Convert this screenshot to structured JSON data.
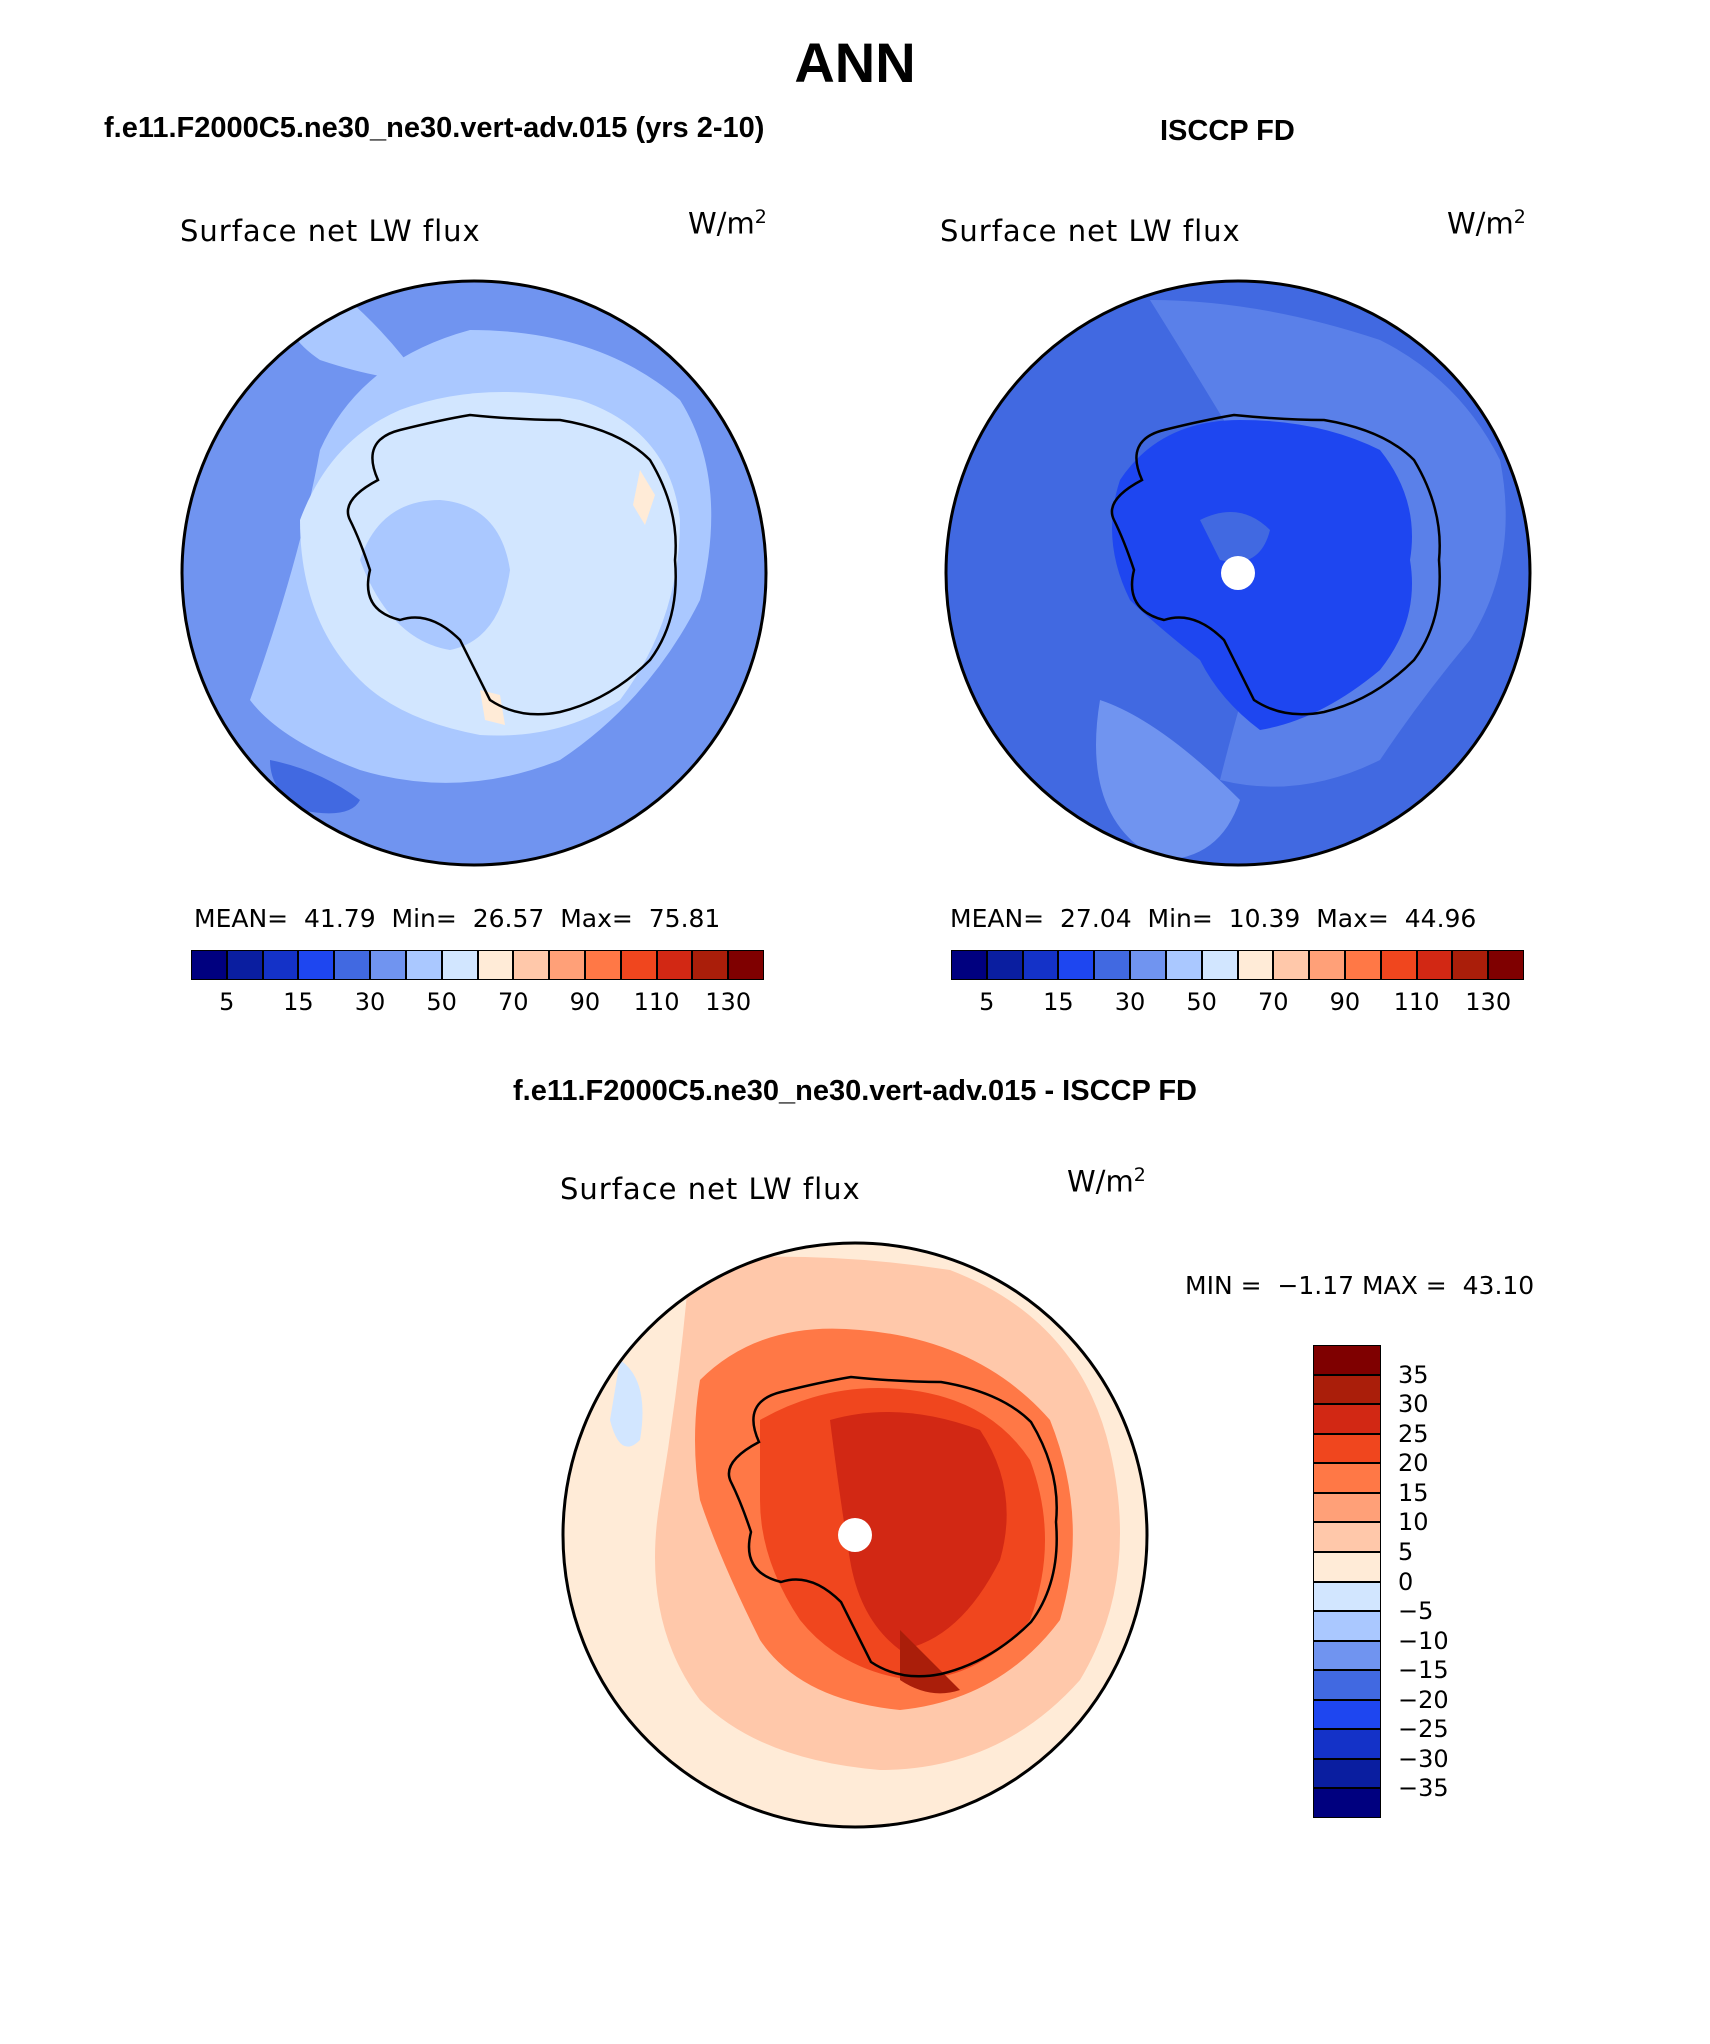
{
  "figure": {
    "title": "ANN",
    "panels": [
      {
        "id": "model",
        "case_title": "f.e11.F2000C5.ne30_ne30.vert-adv.015 (yrs 2-10)",
        "variable_label": "Surface net LW flux",
        "units_base": "W/m",
        "units_exp": "2",
        "stats": {
          "mean_label": "MEAN=",
          "mean": "41.79",
          "min_label": "Min=",
          "min": "26.57",
          "max_label": "Max=",
          "max": "75.81"
        },
        "colorbar_ticks": [
          "5",
          "15",
          "30",
          "50",
          "70",
          "90",
          "110",
          "130"
        ]
      },
      {
        "id": "obs",
        "case_title": "ISCCP FD",
        "variable_label": "Surface net LW flux",
        "units_base": "W/m",
        "units_exp": "2",
        "stats": {
          "mean_label": "MEAN=",
          "mean": "27.04",
          "min_label": "Min=",
          "min": "10.39",
          "max_label": "Max=",
          "max": "44.96"
        },
        "colorbar_ticks": [
          "5",
          "15",
          "30",
          "50",
          "70",
          "90",
          "110",
          "130"
        ]
      },
      {
        "id": "diff",
        "case_title": "f.e11.F2000C5.ne30_ne30.vert-adv.015 - ISCCP FD",
        "variable_label": "Surface net LW flux",
        "units_base": "W/m",
        "units_exp": "2",
        "stats": {
          "min_label": "MIN =",
          "min": "−1.17",
          "max_label": "MAX =",
          "max": "43.10"
        },
        "colorbar_ticks": [
          "35",
          "30",
          "25",
          "20",
          "15",
          "10",
          "5",
          "0",
          "−5",
          "−10",
          "−15",
          "−20",
          "−25",
          "−30",
          "−35"
        ]
      }
    ],
    "colors": {
      "abs_scale": [
        "#00007f",
        "#0a1ea0",
        "#1432c8",
        "#1e46f0",
        "#4169e1",
        "#7094f0",
        "#aac8ff",
        "#d2e6ff",
        "#ffebd7",
        "#ffc8aa",
        "#ffa078",
        "#ff7846",
        "#f0461e",
        "#d22814",
        "#aa1e0a",
        "#7f0000"
      ],
      "diff_scale": [
        "#7f0000",
        "#aa1e0a",
        "#d22814",
        "#f0461e",
        "#ff7846",
        "#ffa078",
        "#ffc8aa",
        "#ffebd7",
        "#d2e6ff",
        "#aac8ff",
        "#7094f0",
        "#4169e1",
        "#1e46f0",
        "#1432c8",
        "#0a1ea0",
        "#00007f"
      ]
    }
  }
}
